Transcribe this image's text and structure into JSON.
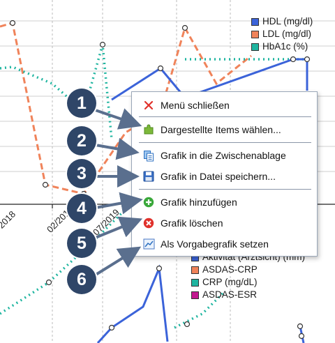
{
  "legend_top": [
    {
      "label": "HDL (mg/dl)",
      "color": "#3b63d9"
    },
    {
      "label": "LDL (mg/dl)",
      "color": "#f0835a"
    },
    {
      "label": "HbA1c (%)",
      "color": "#1fb5a0"
    }
  ],
  "legend_bottom": [
    {
      "label": "Aktivität (Arztsicht) (mm)",
      "color": "#3b63d9"
    },
    {
      "label": "ASDAS-CRP",
      "color": "#f0835a"
    },
    {
      "label": "CRP (mg/dL)",
      "color": "#1fb5a0"
    },
    {
      "label": "ASDAS-ESR",
      "color": "#c2188f"
    }
  ],
  "axis_ticks": [
    "2018",
    "02/2019",
    "07/2019"
  ],
  "context_menu": {
    "items": [
      {
        "label": "Menü schließen",
        "icon": "close-icon"
      },
      {
        "label": "Dargestellte Items wählen...",
        "icon": "puzzle-icon"
      },
      {
        "label": "Grafik in die Zwischenablage",
        "icon": "clipboard-copy-icon"
      },
      {
        "label": "Grafik in Datei speichern...",
        "icon": "save-disk-icon"
      },
      {
        "label": "Grafik hinzufügen",
        "icon": "add-icon"
      },
      {
        "label": "Grafik löschen",
        "icon": "delete-icon"
      },
      {
        "label": "Als Vorgabegrafik setzen",
        "icon": "chart-default-icon"
      }
    ]
  },
  "callouts": [
    "1",
    "2",
    "3",
    "4",
    "5",
    "6"
  ],
  "colors": {
    "hdl": "#3b63d9",
    "ldl": "#f0835a",
    "hba1c": "#1fb5a0",
    "asdas_esr": "#c2188f",
    "callout": "#2f4668",
    "grid": "#c8c8c8"
  }
}
